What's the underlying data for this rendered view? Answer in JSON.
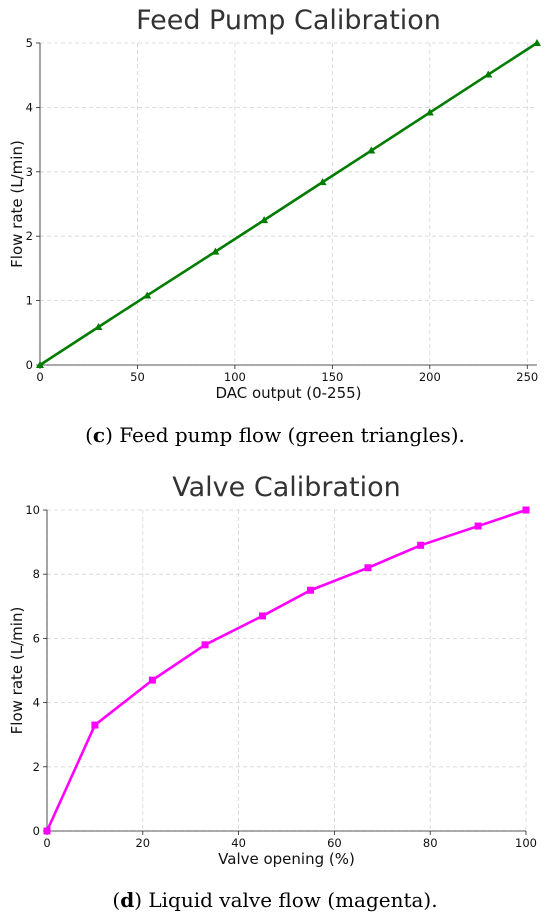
{
  "chart_data": [
    {
      "type": "line",
      "title": "Feed Pump Calibration",
      "xlabel": "DAC output (0-255)",
      "ylabel": "Flow rate (L/min)",
      "xlim": [
        0,
        255
      ],
      "ylim": [
        0,
        5
      ],
      "xticks": [
        0,
        50,
        100,
        150,
        200,
        250
      ],
      "yticks": [
        0,
        1,
        2,
        3,
        4,
        5
      ],
      "grid": true,
      "marker": "triangle",
      "color": "#007c00",
      "x": [
        0,
        30,
        55,
        90,
        115,
        145,
        170,
        200,
        230,
        255
      ],
      "y": [
        0,
        0.59,
        1.08,
        1.76,
        2.25,
        2.84,
        3.33,
        3.92,
        4.51,
        5.0
      ],
      "caption_letter": "c",
      "caption_text": " Feed pump flow (green triangles)."
    },
    {
      "type": "line",
      "title": "Valve Calibration",
      "xlabel": "Valve opening (%)",
      "ylabel": "Flow rate (L/min)",
      "xlim": [
        0,
        100
      ],
      "ylim": [
        0,
        10
      ],
      "xticks": [
        0,
        20,
        40,
        60,
        80,
        100
      ],
      "yticks": [
        0,
        2,
        4,
        6,
        8,
        10
      ],
      "grid": true,
      "marker": "square",
      "color": "#ff00ff",
      "x": [
        0,
        10,
        22,
        33,
        45,
        55,
        67,
        78,
        90,
        100
      ],
      "y": [
        0,
        3.3,
        4.7,
        5.8,
        6.7,
        7.5,
        8.2,
        8.9,
        9.5,
        10.0
      ],
      "caption_letter": "d",
      "caption_text": " Liquid valve flow (magenta)."
    }
  ]
}
